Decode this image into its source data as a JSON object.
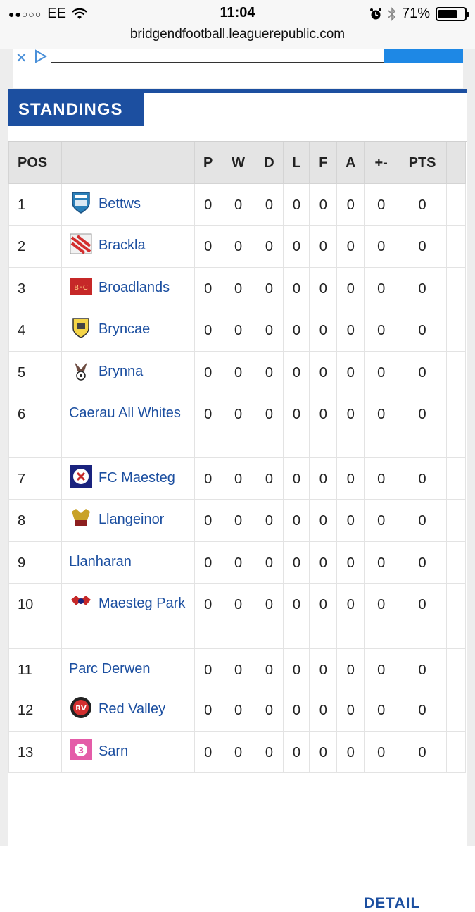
{
  "status_bar": {
    "carrier": "EE",
    "time": "11:04",
    "battery": "71%",
    "battery_level": 0.71
  },
  "browser": {
    "url": "bridgendfootball.leaguerepublic.com"
  },
  "widget": {
    "title": "STANDINGS",
    "detail_label": "DETAIL"
  },
  "table": {
    "headers": {
      "pos": "POS",
      "team": "",
      "p": "P",
      "w": "W",
      "d": "D",
      "l": "L",
      "f": "F",
      "a": "A",
      "diff": "+-",
      "pts": "PTS"
    },
    "rows": [
      {
        "pos": "1",
        "team": "Bettws",
        "logo": "bettws-crest",
        "p": "0",
        "w": "0",
        "d": "0",
        "l": "0",
        "f": "0",
        "a": "0",
        "diff": "0",
        "pts": "0"
      },
      {
        "pos": "2",
        "team": "Brackla",
        "logo": "brackla-crest",
        "p": "0",
        "w": "0",
        "d": "0",
        "l": "0",
        "f": "0",
        "a": "0",
        "diff": "0",
        "pts": "0"
      },
      {
        "pos": "3",
        "team": "Broadlands",
        "logo": "broadlands-crest",
        "p": "0",
        "w": "0",
        "d": "0",
        "l": "0",
        "f": "0",
        "a": "0",
        "diff": "0",
        "pts": "0"
      },
      {
        "pos": "4",
        "team": "Bryncae",
        "logo": "bryncae-crest",
        "p": "0",
        "w": "0",
        "d": "0",
        "l": "0",
        "f": "0",
        "a": "0",
        "diff": "0",
        "pts": "0"
      },
      {
        "pos": "5",
        "team": "Brynna",
        "logo": "brynna-crest",
        "p": "0",
        "w": "0",
        "d": "0",
        "l": "0",
        "f": "0",
        "a": "0",
        "diff": "0",
        "pts": "0"
      },
      {
        "pos": "6",
        "team": "Caerau All Whites",
        "logo": "",
        "p": "0",
        "w": "0",
        "d": "0",
        "l": "0",
        "f": "0",
        "a": "0",
        "diff": "0",
        "pts": "0"
      },
      {
        "pos": "7",
        "team": "FC Maesteg",
        "logo": "fc-maesteg-crest",
        "p": "0",
        "w": "0",
        "d": "0",
        "l": "0",
        "f": "0",
        "a": "0",
        "diff": "0",
        "pts": "0"
      },
      {
        "pos": "8",
        "team": "Llangeinor",
        "logo": "llangeinor-crest",
        "p": "0",
        "w": "0",
        "d": "0",
        "l": "0",
        "f": "0",
        "a": "0",
        "diff": "0",
        "pts": "0"
      },
      {
        "pos": "9",
        "team": "Llanharan",
        "logo": "",
        "p": "0",
        "w": "0",
        "d": "0",
        "l": "0",
        "f": "0",
        "a": "0",
        "diff": "0",
        "pts": "0"
      },
      {
        "pos": "10",
        "team": "Maesteg Park",
        "logo": "maesteg-park-crest",
        "p": "0",
        "w": "0",
        "d": "0",
        "l": "0",
        "f": "0",
        "a": "0",
        "diff": "0",
        "pts": "0"
      },
      {
        "pos": "11",
        "team": "Parc Derwen",
        "logo": "",
        "p": "0",
        "w": "0",
        "d": "0",
        "l": "0",
        "f": "0",
        "a": "0",
        "diff": "0",
        "pts": "0"
      },
      {
        "pos": "12",
        "team": "Red Valley",
        "logo": "red-valley-crest",
        "p": "0",
        "w": "0",
        "d": "0",
        "l": "0",
        "f": "0",
        "a": "0",
        "diff": "0",
        "pts": "0"
      },
      {
        "pos": "13",
        "team": "Sarn",
        "logo": "sarn-crest",
        "p": "0",
        "w": "0",
        "d": "0",
        "l": "0",
        "f": "0",
        "a": "0",
        "diff": "0",
        "pts": "0"
      }
    ]
  }
}
